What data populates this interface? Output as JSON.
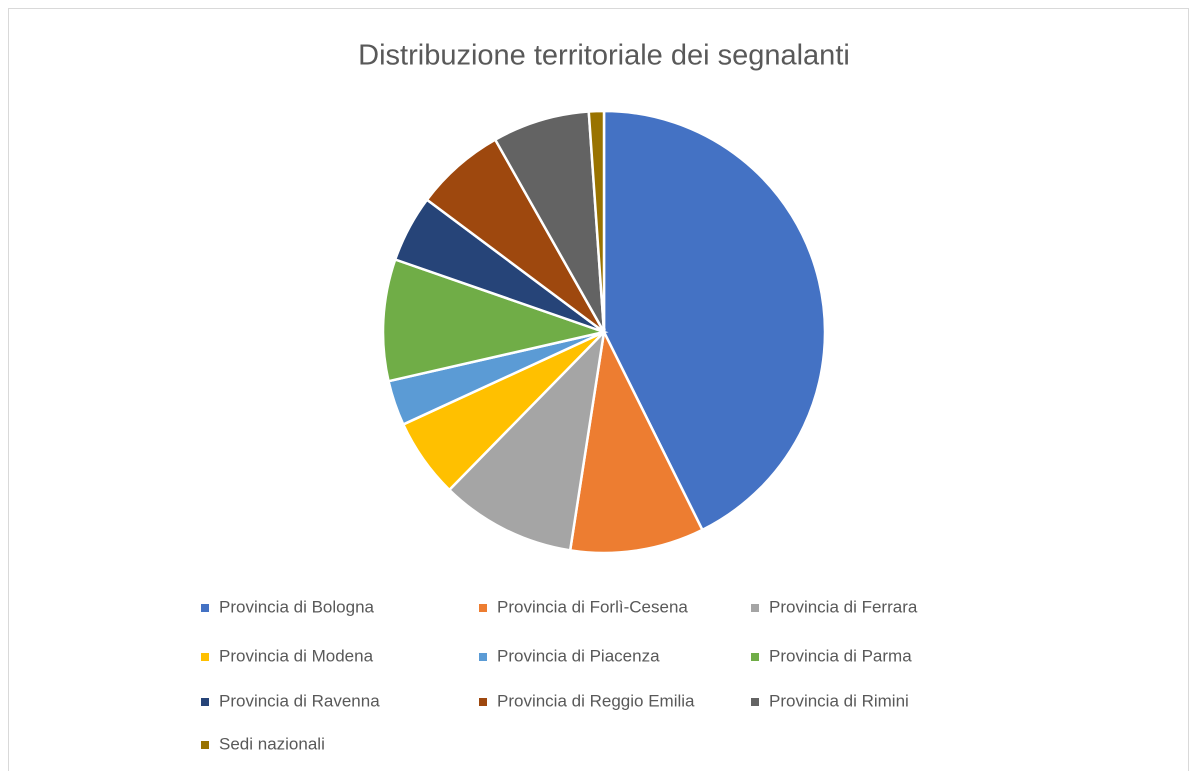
{
  "chart_data": {
    "type": "pie",
    "title": "Distribuzione territoriale dei segnalanti",
    "categories": [
      "Provincia di Bologna",
      "Provincia di Forlì-Cesena",
      "Provincia di Ferrara",
      "Provincia di Modena",
      "Provincia di Piacenza",
      "Provincia di Parma",
      "Provincia di Ravenna",
      "Provincia di Reggio Emilia",
      "Provincia di Rimini",
      "Sedi nazionali"
    ],
    "values": [
      42.7,
      9.8,
      9.9,
      5.8,
      3.3,
      8.9,
      4.9,
      6.6,
      7.1,
      1.1
    ],
    "colors": [
      "#4472c4",
      "#ed7d31",
      "#a5a5a5",
      "#ffc000",
      "#5b9bd5",
      "#70ad47",
      "#264478",
      "#9e480e",
      "#636363",
      "#997300"
    ],
    "legend": "bottom"
  }
}
